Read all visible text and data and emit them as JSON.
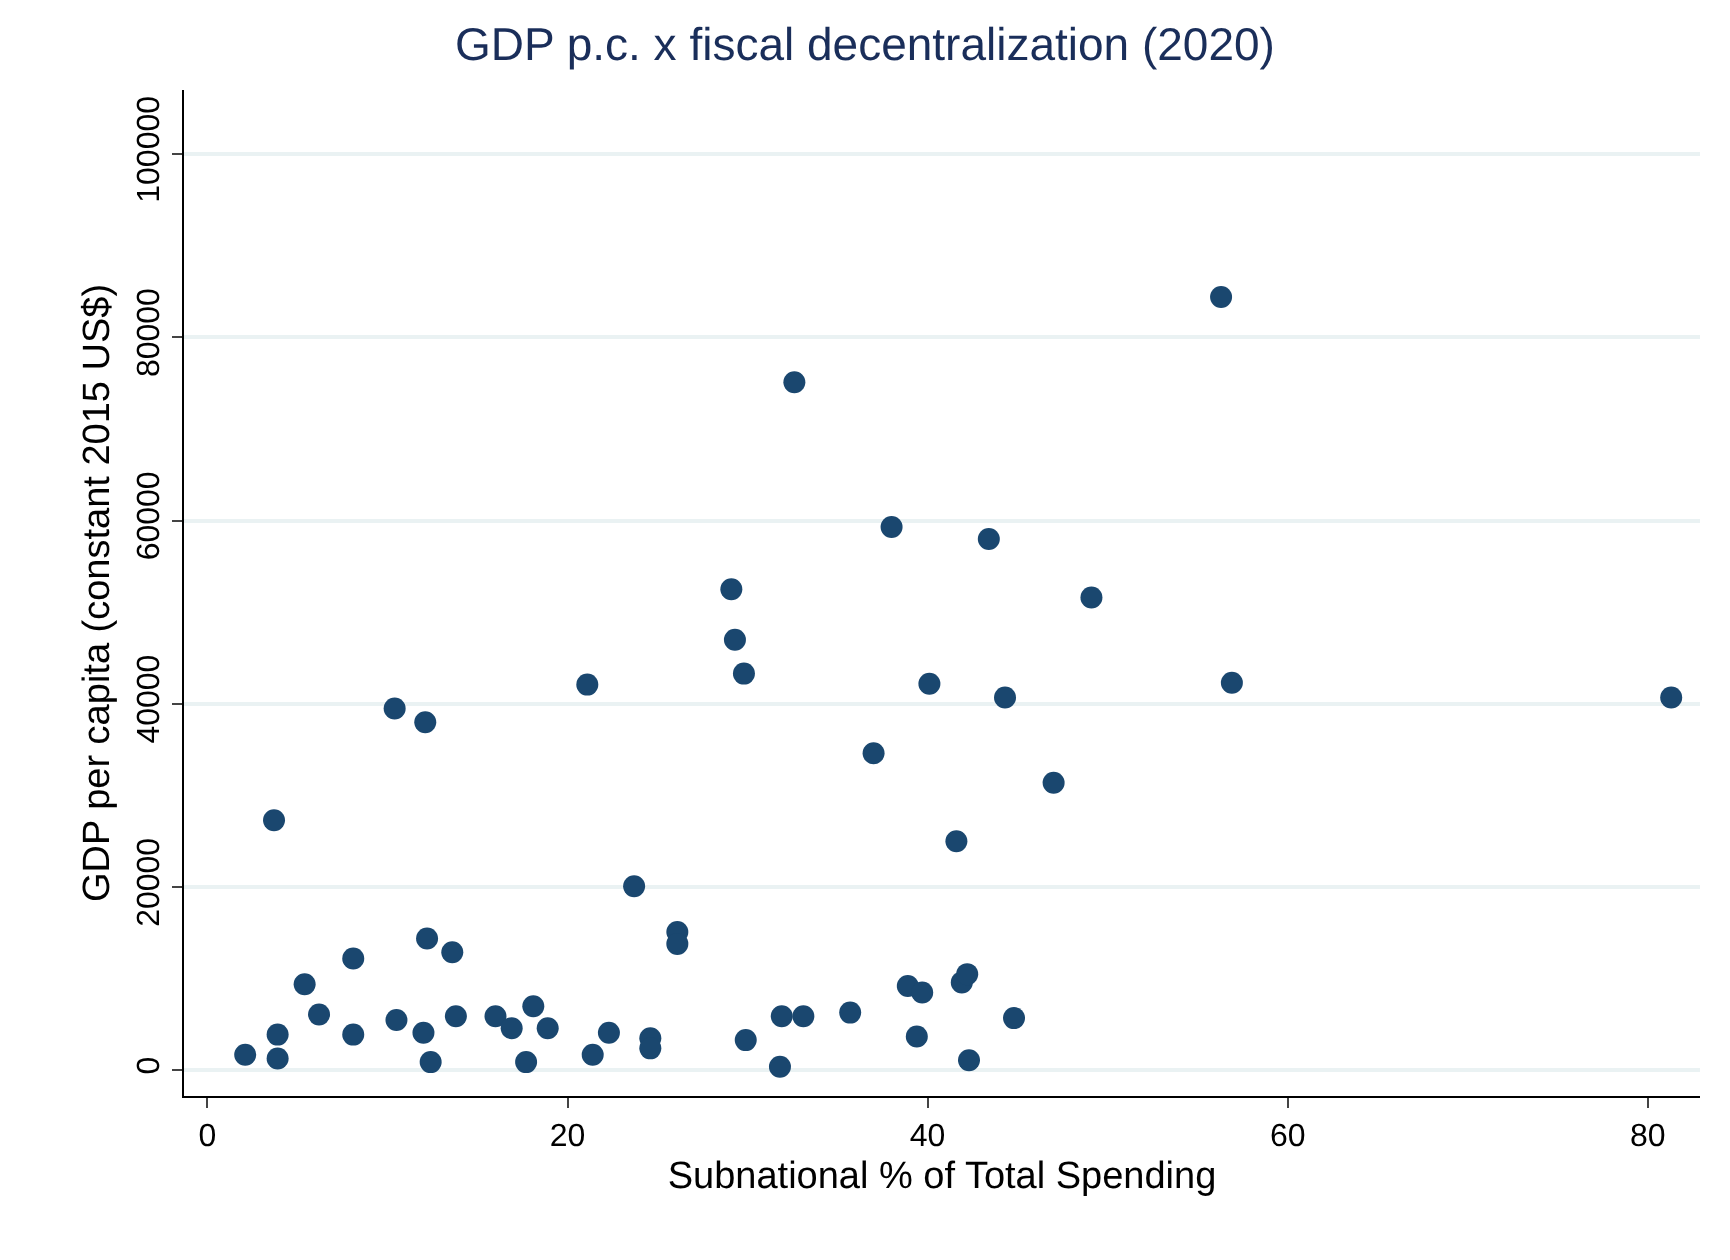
{
  "chart_data": {
    "type": "scatter",
    "title": "GDP p.c. x fiscal decentralization (2020)",
    "xlabel": "Subnational % of Total Spending",
    "ylabel": "GDP per capita (constant 2015 US$)",
    "x": [
      2.1,
      3.9,
      3.9,
      3.7,
      5.4,
      6.2,
      8.1,
      8.1,
      10.5,
      10.4,
      12.0,
      12.2,
      12.4,
      12.1,
      13.6,
      13.8,
      16.0,
      16.9,
      17.7,
      18.1,
      18.9,
      21.1,
      21.4,
      22.3,
      23.7,
      24.6,
      24.6,
      26.1,
      26.1,
      29.1,
      29.3,
      29.8,
      29.9,
      32.6,
      31.8,
      31.9,
      33.1,
      35.7,
      37.0,
      38.0,
      38.9,
      39.7,
      39.4,
      40.1,
      41.9,
      42.2,
      42.3,
      41.6,
      43.4,
      44.3,
      44.8,
      47.0,
      49.1,
      56.3,
      56.9,
      81.3
    ],
    "values": [
      1700,
      3900,
      1300,
      27300,
      9400,
      6100,
      3900,
      12200,
      5500,
      39500,
      4100,
      14400,
      900,
      38000,
      12900,
      5900,
      5900,
      4600,
      900,
      7000,
      4600,
      42100,
      1700,
      4100,
      20100,
      3500,
      2400,
      15100,
      13800,
      52500,
      47000,
      43300,
      3300,
      75100,
      400,
      5900,
      5900,
      6300,
      34600,
      59300,
      9200,
      8500,
      3700,
      42200,
      9600,
      10500,
      1100,
      25000,
      58000,
      40700,
      5700,
      31400,
      51600,
      84400,
      42300,
      40700
    ],
    "color": "#1a476f",
    "marker": "circle",
    "xlim": [
      -1.3,
      82.9
    ],
    "xticks": [
      0,
      20,
      40,
      60,
      80
    ],
    "ylim": [
      -2800,
      107000
    ],
    "yticks": [
      0,
      20000,
      40000,
      60000,
      80000,
      100000
    ],
    "grid": "y"
  }
}
